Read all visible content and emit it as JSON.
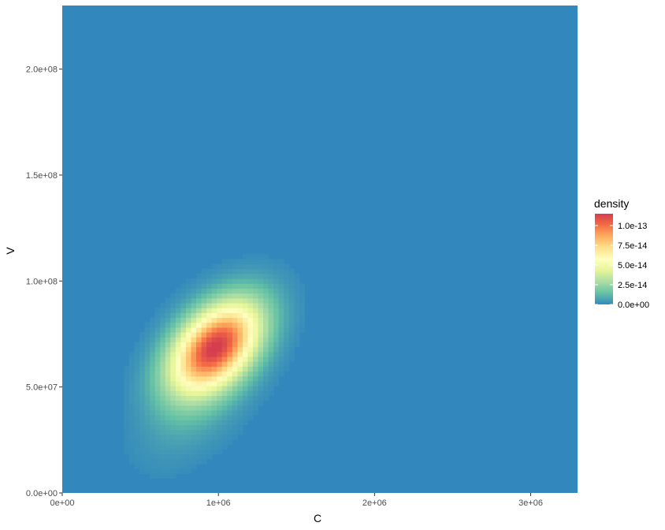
{
  "chart_data": {
    "type": "heatmap",
    "title": "",
    "xlabel": "C",
    "ylabel": "V",
    "xlim": [
      0,
      3300000
    ],
    "ylim": [
      0,
      230000000
    ],
    "x_ticks": [
      {
        "value": 0,
        "label": "0e+00"
      },
      {
        "value": 1000000,
        "label": "1e+06"
      },
      {
        "value": 2000000,
        "label": "2e+06"
      },
      {
        "value": 3000000,
        "label": "3e+06"
      }
    ],
    "y_ticks": [
      {
        "value": 0,
        "label": "0.0e+00"
      },
      {
        "value": 50000000,
        "label": "5.0e+07"
      },
      {
        "value": 100000000,
        "label": "1.0e+08"
      },
      {
        "value": 150000000,
        "label": "1.5e+08"
      },
      {
        "value": 200000000,
        "label": "2.0e+08"
      }
    ],
    "fill": {
      "name": "density",
      "limits": [
        0,
        1.15e-13
      ],
      "palette": [
        "#3288BD",
        "#66C2A5",
        "#ABDDA4",
        "#E6F598",
        "#FFFFBF",
        "#FEE08B",
        "#FDAE61",
        "#F46D43",
        "#D53E4F"
      ],
      "breaks": [
        {
          "value": 0,
          "label": "0.0e+00"
        },
        {
          "value": 2.5e-14,
          "label": "2.5e-14"
        },
        {
          "value": 5e-14,
          "label": "5.0e-14"
        },
        {
          "value": 7.5e-14,
          "label": "7.5e-14"
        },
        {
          "value": 1e-13,
          "label": "1.0e-13"
        }
      ]
    },
    "density_peaks": [
      {
        "x": 980000,
        "y": 69000000,
        "peak_density": 1.15e-13
      },
      {
        "x": 850000,
        "y": 40000000,
        "peak_density": 8e-15
      }
    ],
    "legend_position": "right",
    "grid": false
  }
}
